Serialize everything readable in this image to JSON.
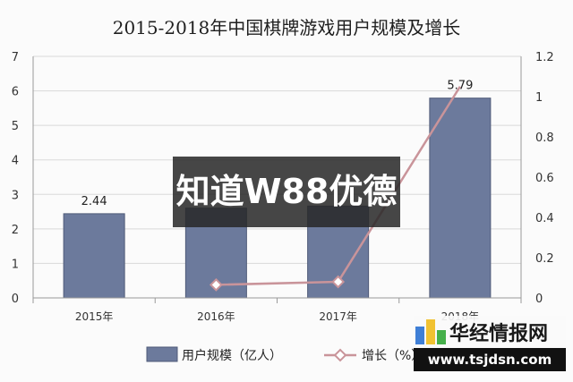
{
  "chart_data": {
    "type": "bar",
    "title": "2015-2018年中国棋牌游戏用户规模及增长",
    "categories": [
      "2015年",
      "2016年",
      "2017年",
      "2018年"
    ],
    "series": [
      {
        "name": "用户规模（亿人）",
        "type": "bar",
        "axis": "left",
        "values": [
          2.44,
          2.6,
          2.66,
          5.79
        ],
        "data_labels": [
          "2.44",
          "",
          "",
          "5.79"
        ],
        "color": "#6c7a9c"
      },
      {
        "name": "增长（%）",
        "type": "line",
        "axis": "right",
        "values": [
          null,
          0.065,
          0.08,
          1.05
        ],
        "color": "#c9949a"
      }
    ],
    "y_left": {
      "min": 0,
      "max": 7,
      "ticks": [
        "0",
        "1",
        "2",
        "3",
        "4",
        "5",
        "6",
        "7"
      ]
    },
    "y_right": {
      "min": 0,
      "max": 1.2,
      "ticks": [
        "0",
        "0.2",
        "0.4",
        "0.6",
        "0.8",
        "1",
        "1.2"
      ]
    },
    "grid": true,
    "legend": "bottom"
  },
  "watermark": {
    "text": "知道W88优德"
  },
  "badge": {
    "name": "华经情报网",
    "url": "www.tsjdsn.com"
  }
}
